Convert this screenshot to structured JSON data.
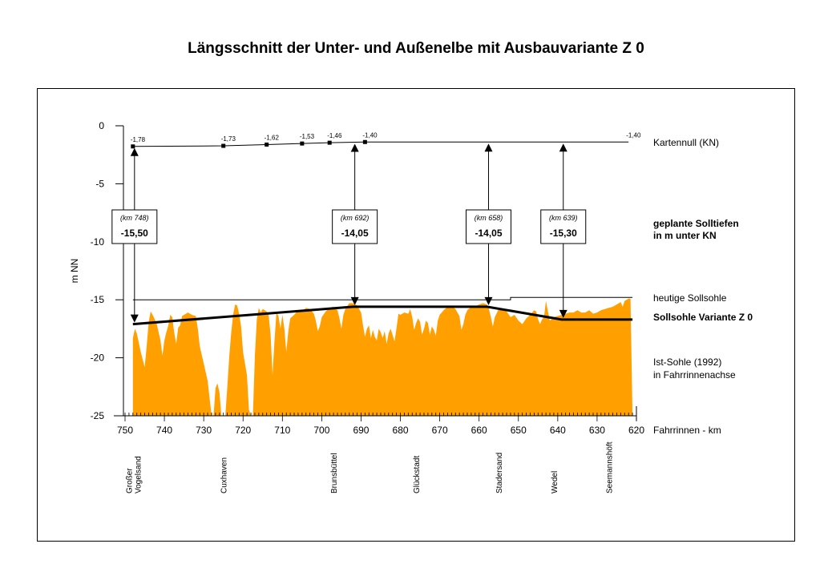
{
  "chart_data": {
    "type": "area",
    "title": "Längsschnitt der Unter- und Außenelbe mit Ausbauvariante Z 0",
    "xlabel": "Fahrrinnen - km",
    "ylabel": "m NN",
    "xlim": [
      750,
      620
    ],
    "ylim": [
      -25,
      0
    ],
    "x_ticks": [
      750,
      740,
      730,
      720,
      710,
      700,
      690,
      680,
      670,
      660,
      650,
      640,
      630,
      620
    ],
    "y_ticks": [
      0,
      -5,
      -10,
      -15,
      -20,
      -25
    ],
    "kartennull": {
      "label": "Kartennull (KN)",
      "points": [
        {
          "km": 748,
          "value": -1.78,
          "label": "-1,78"
        },
        {
          "km": 725,
          "value": -1.73,
          "label": "-1,73"
        },
        {
          "km": 714,
          "value": -1.62,
          "label": "-1,62"
        },
        {
          "km": 705,
          "value": -1.53,
          "label": "-1,53"
        },
        {
          "km": 698,
          "value": -1.46,
          "label": "-1,46"
        },
        {
          "km": 689,
          "value": -1.4,
          "label": "-1,40"
        },
        {
          "km": 622,
          "value": -1.4,
          "label": "-1,40"
        }
      ]
    },
    "planned_depths": {
      "legend_line1": "geplante Solltiefen",
      "legend_line2": "in m unter KN",
      "boxes": [
        {
          "km": 748,
          "km_label": "(km 748)",
          "depth_label": "-15,50",
          "bottom": -17.1
        },
        {
          "km": 692,
          "km_label": "(km 692)",
          "depth_label": "-14,05",
          "bottom": -15.6
        },
        {
          "km": 658,
          "km_label": "(km 658)",
          "depth_label": "-14,05",
          "bottom": -15.6
        },
        {
          "km": 639,
          "km_label": "(km 639)",
          "depth_label": "-15,30",
          "bottom": -16.7
        }
      ]
    },
    "series": [
      {
        "name": "heutige Sollsohle",
        "style": "thin-line",
        "points": [
          [
            748,
            -15.0
          ],
          [
            652,
            -15.0
          ],
          [
            652,
            -14.8
          ],
          [
            621,
            -14.8
          ]
        ]
      },
      {
        "name": "Sollsohle Variante Z 0",
        "style": "bold-line",
        "points": [
          [
            748,
            -17.1
          ],
          [
            692,
            -15.6
          ],
          [
            658,
            -15.6
          ],
          [
            639,
            -16.7
          ],
          [
            621,
            -16.7
          ]
        ]
      },
      {
        "name": "Ist-Sohle (1992)",
        "name_line2": "in Fahrrinnenachse",
        "style": "filled-area",
        "color": "#FF9F00",
        "points": [
          [
            748,
            -25
          ],
          [
            748,
            -18.3
          ],
          [
            747.5,
            -17.5
          ],
          [
            747,
            -17.9
          ],
          [
            746,
            -19.5
          ],
          [
            745,
            -20.8
          ],
          [
            744.5,
            -19
          ],
          [
            744,
            -17
          ],
          [
            743.5,
            -16
          ],
          [
            743,
            -16.3
          ],
          [
            742,
            -17
          ],
          [
            741,
            -18.5
          ],
          [
            740.5,
            -19.8
          ],
          [
            740,
            -18.5
          ],
          [
            739.5,
            -17.8
          ],
          [
            739,
            -17.2
          ],
          [
            738.5,
            -16.3
          ],
          [
            738,
            -16.5
          ],
          [
            737.5,
            -17.8
          ],
          [
            737,
            -18.8
          ],
          [
            736.5,
            -17.4
          ],
          [
            736,
            -17.2
          ],
          [
            735.5,
            -16.4
          ],
          [
            735,
            -16.3
          ],
          [
            734,
            -16.1
          ],
          [
            733,
            -16.3
          ],
          [
            732,
            -16.4
          ],
          [
            731.5,
            -17.5
          ],
          [
            731,
            -19
          ],
          [
            730,
            -20.5
          ],
          [
            729,
            -22
          ],
          [
            728.5,
            -23.5
          ],
          [
            728,
            -25
          ],
          [
            727.5,
            -25
          ],
          [
            727,
            -22.6
          ],
          [
            726.5,
            -22.2
          ],
          [
            726,
            -23
          ],
          [
            725.5,
            -25
          ],
          [
            724.5,
            -25
          ],
          [
            724,
            -22.5
          ],
          [
            723.5,
            -19.8
          ],
          [
            723,
            -17.8
          ],
          [
            722.5,
            -16.2
          ],
          [
            722,
            -15.4
          ],
          [
            721.5,
            -15.5
          ],
          [
            721,
            -16.2
          ],
          [
            720.5,
            -17.3
          ],
          [
            720,
            -19.5
          ],
          [
            719,
            -21.5
          ],
          [
            718.5,
            -24.5
          ],
          [
            718,
            -25
          ],
          [
            717.5,
            -25
          ],
          [
            717,
            -19.8
          ],
          [
            716.5,
            -16.7
          ],
          [
            716,
            -15.7
          ],
          [
            715.5,
            -16.1
          ],
          [
            715,
            -15.8
          ],
          [
            714,
            -16
          ],
          [
            713.5,
            -16.3
          ],
          [
            713,
            -18
          ],
          [
            712.5,
            -21.5
          ],
          [
            712,
            -18.5
          ],
          [
            711.5,
            -16.1
          ],
          [
            711,
            -16.4
          ],
          [
            710.5,
            -17.5
          ],
          [
            710,
            -16.3
          ],
          [
            709.5,
            -17.5
          ],
          [
            709,
            -19.5
          ],
          [
            708.5,
            -17.7
          ],
          [
            708,
            -16.6
          ],
          [
            707,
            -16.3
          ],
          [
            706,
            -15.9
          ],
          [
            705,
            -16
          ],
          [
            704,
            -15.7
          ],
          [
            703,
            -15.8
          ],
          [
            702,
            -16.2
          ],
          [
            701.5,
            -16.8
          ],
          [
            701,
            -17.7
          ],
          [
            700.5,
            -17.3
          ],
          [
            700,
            -16.5
          ],
          [
            699,
            -16
          ],
          [
            698,
            -15.7
          ],
          [
            697,
            -15.6
          ],
          [
            696,
            -15.9
          ],
          [
            695.5,
            -16.6
          ],
          [
            695,
            -17.5
          ],
          [
            694.5,
            -16.3
          ],
          [
            694,
            -15.8
          ],
          [
            693,
            -15.3
          ],
          [
            692,
            -15.3
          ],
          [
            691,
            -15.5
          ],
          [
            690,
            -16.1
          ],
          [
            689.5,
            -17.2
          ],
          [
            689,
            -18.2
          ],
          [
            688.5,
            -17.5
          ],
          [
            688,
            -17.2
          ],
          [
            687.5,
            -18.3
          ],
          [
            687,
            -17.6
          ],
          [
            686.5,
            -18.2
          ],
          [
            686,
            -18.5
          ],
          [
            685.5,
            -17.5
          ],
          [
            685,
            -17.8
          ],
          [
            684.5,
            -18.3
          ],
          [
            684,
            -17.7
          ],
          [
            683.5,
            -18.8
          ],
          [
            683,
            -17.9
          ],
          [
            682.5,
            -17.5
          ],
          [
            682,
            -18
          ],
          [
            681.5,
            -18.6
          ],
          [
            681,
            -17.5
          ],
          [
            680.5,
            -16.2
          ],
          [
            680,
            -16.3
          ],
          [
            679,
            -16.1
          ],
          [
            678,
            -16.2
          ],
          [
            677.5,
            -15.8
          ],
          [
            677,
            -16.5
          ],
          [
            676.5,
            -17.6
          ],
          [
            676,
            -17
          ],
          [
            675.5,
            -16.6
          ],
          [
            675,
            -16.9
          ],
          [
            674.5,
            -18
          ],
          [
            674,
            -17.5
          ],
          [
            673.5,
            -16.8
          ],
          [
            673,
            -17
          ],
          [
            672.5,
            -18
          ],
          [
            672,
            -17.3
          ],
          [
            671.5,
            -17.6
          ],
          [
            671,
            -18.1
          ],
          [
            670.5,
            -16.8
          ],
          [
            670,
            -16.3
          ],
          [
            669,
            -15.9
          ],
          [
            668,
            -15.6
          ],
          [
            667,
            -15.5
          ],
          [
            666,
            -15.8
          ],
          [
            665,
            -16.4
          ],
          [
            664.5,
            -17.6
          ],
          [
            664,
            -17.1
          ],
          [
            663.5,
            -16.3
          ],
          [
            663,
            -15.9
          ],
          [
            662,
            -15.6
          ],
          [
            661,
            -15.6
          ],
          [
            660,
            -15.4
          ],
          [
            659,
            -15.3
          ],
          [
            658,
            -15.4
          ],
          [
            657.5,
            -15.8
          ],
          [
            657,
            -16.5
          ],
          [
            656.5,
            -17.3
          ],
          [
            656,
            -16.5
          ],
          [
            655,
            -15.8
          ],
          [
            654,
            -15.8
          ],
          [
            653,
            -16
          ],
          [
            652,
            -16.5
          ],
          [
            651,
            -16.3
          ],
          [
            650,
            -16.8
          ],
          [
            649,
            -17.1
          ],
          [
            648,
            -16.6
          ],
          [
            647,
            -16.3
          ],
          [
            646,
            -15.9
          ],
          [
            645.5,
            -16
          ],
          [
            645,
            -16.7
          ],
          [
            644.5,
            -17.1
          ],
          [
            644,
            -16.7
          ],
          [
            643.5,
            -16.5
          ],
          [
            643,
            -15.1
          ],
          [
            642.5,
            -16
          ],
          [
            642,
            -16.8
          ],
          [
            641,
            -16.5
          ],
          [
            640,
            -16.4
          ],
          [
            639,
            -16.3
          ],
          [
            638,
            -16.2
          ],
          [
            637,
            -16.1
          ],
          [
            636,
            -16.1
          ],
          [
            635,
            -15.9
          ],
          [
            634,
            -16.1
          ],
          [
            633,
            -16.1
          ],
          [
            632,
            -15.9
          ],
          [
            631,
            -16.2
          ],
          [
            630,
            -16.1
          ],
          [
            629,
            -15.9
          ],
          [
            628,
            -15.8
          ],
          [
            627,
            -15.7
          ],
          [
            626,
            -15.6
          ],
          [
            625,
            -15.4
          ],
          [
            624,
            -15.2
          ],
          [
            623.5,
            -15.6
          ],
          [
            623,
            -15.1
          ],
          [
            622,
            -14.9
          ],
          [
            621.5,
            -14.9
          ],
          [
            621,
            -25
          ]
        ]
      }
    ],
    "locations": [
      {
        "km": 748,
        "lines": [
          "Großer",
          "Vogelsand"
        ]
      },
      {
        "km": 725,
        "lines": [
          "Cuxhaven"
        ]
      },
      {
        "km": 697,
        "lines": [
          "Brunsbüttel"
        ]
      },
      {
        "km": 676,
        "lines": [
          "Glückstadt"
        ]
      },
      {
        "km": 655,
        "lines": [
          "Stadersand"
        ]
      },
      {
        "km": 641,
        "lines": [
          "Wedel"
        ]
      },
      {
        "km": 627,
        "lines": [
          "Seemannshöft"
        ]
      }
    ]
  }
}
